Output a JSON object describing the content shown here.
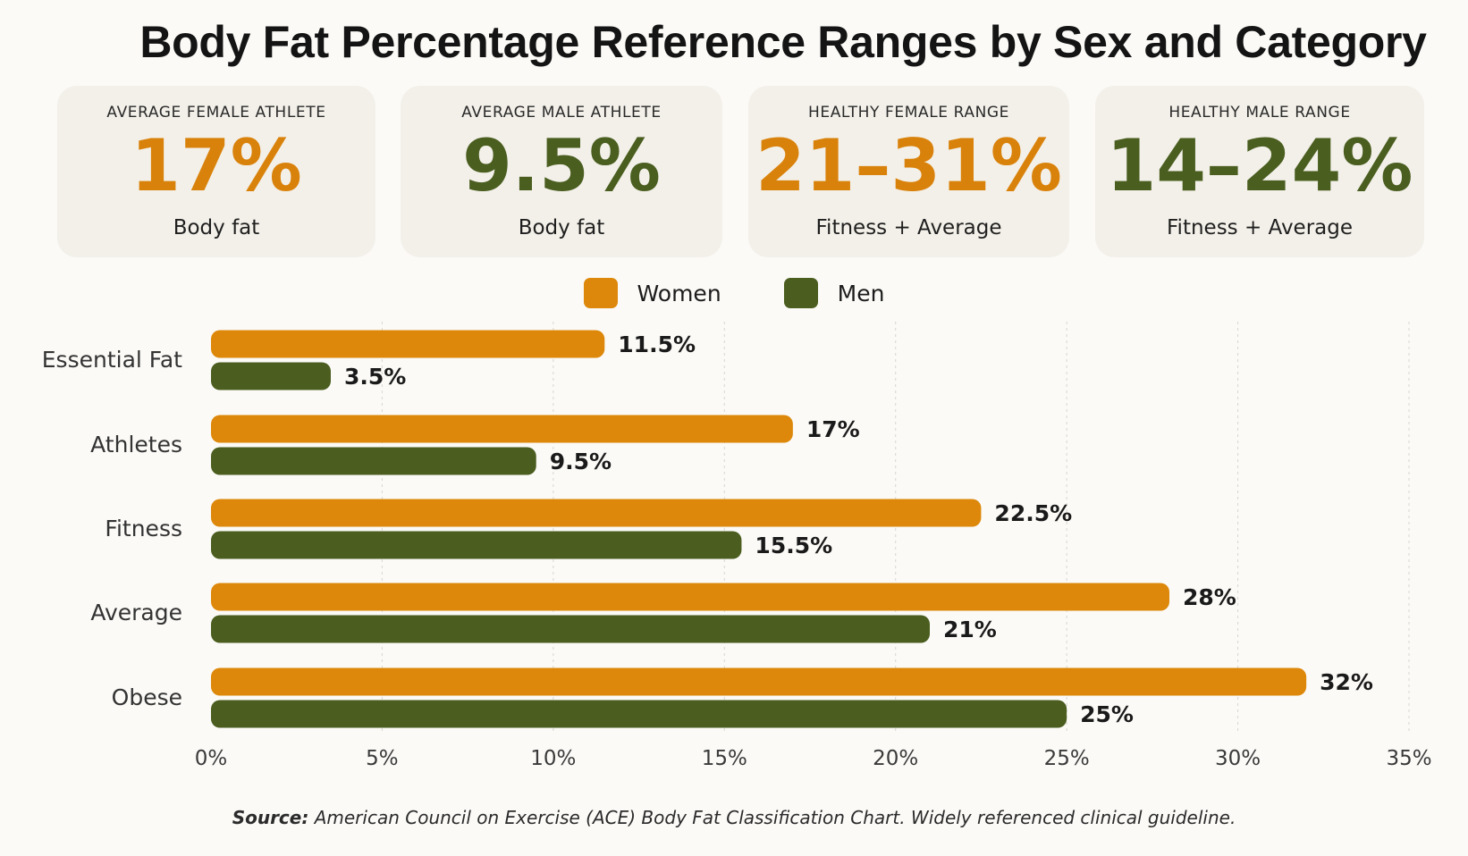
{
  "title": "Body Fat Percentage Reference Ranges by Sex and Category",
  "cards": [
    {
      "kicker": "AVERAGE FEMALE ATHLETE",
      "value": "17%",
      "sub": "Body fat",
      "color": "#d9820b"
    },
    {
      "kicker": "AVERAGE MALE ATHLETE",
      "value": "9.5%",
      "sub": "Body fat",
      "color": "#4a5e20"
    },
    {
      "kicker": "HEALTHY FEMALE RANGE",
      "value": "21–31%",
      "sub": "Fitness + Average",
      "color": "#d9820b"
    },
    {
      "kicker": "HEALTHY MALE RANGE",
      "value": "14–24%",
      "sub": "Fitness + Average",
      "color": "#4a5e20"
    }
  ],
  "legend": {
    "women": "Women",
    "men": "Men"
  },
  "colors": {
    "women": "#dd880a",
    "men": "#4b5e1f"
  },
  "chart_data": {
    "type": "bar",
    "orientation": "horizontal",
    "categories": [
      "Essential Fat",
      "Athletes",
      "Fitness",
      "Average",
      "Obese"
    ],
    "series": [
      {
        "name": "Women",
        "values": [
          11.5,
          17,
          22.5,
          28,
          32
        ],
        "labels": [
          "11.5%",
          "17%",
          "22.5%",
          "28%",
          "32%"
        ]
      },
      {
        "name": "Men",
        "values": [
          3.5,
          9.5,
          15.5,
          21,
          25
        ],
        "labels": [
          "3.5%",
          "9.5%",
          "15.5%",
          "21%",
          "25%"
        ]
      }
    ],
    "xlim": [
      0,
      35
    ],
    "xticks": [
      0,
      5,
      10,
      15,
      20,
      25,
      30,
      35
    ],
    "xtick_labels": [
      "0%",
      "5%",
      "10%",
      "15%",
      "20%",
      "25%",
      "30%",
      "35%"
    ],
    "grid": true,
    "legend_position": "top-center"
  },
  "source": {
    "label": "Source:",
    "text": " American Council on Exercise (ACE) Body Fat Classification Chart. Widely referenced clinical guideline."
  }
}
